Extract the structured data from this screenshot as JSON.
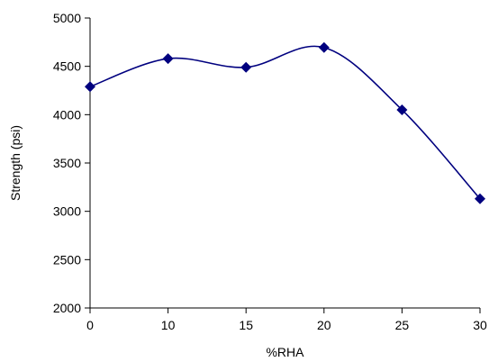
{
  "chart_data": {
    "type": "line",
    "title": "",
    "xlabel": "%RHA",
    "ylabel": "Strength (psi)",
    "xlim": [
      0,
      30
    ],
    "ylim": [
      2000,
      5000
    ],
    "x_ticks": [
      "0",
      "10",
      "15",
      "20",
      "25",
      "30"
    ],
    "y_ticks": [
      "2000",
      "2500",
      "3000",
      "3500",
      "4000",
      "4500",
      "5000"
    ],
    "grid": false,
    "legend": "none",
    "marker": "diamond",
    "series": [
      {
        "color": "#00007f",
        "categories": [
          "0",
          "10",
          "15",
          "20",
          "25",
          "30"
        ],
        "values": [
          4290,
          4580,
          4490,
          4695,
          4050,
          3130
        ]
      }
    ]
  }
}
